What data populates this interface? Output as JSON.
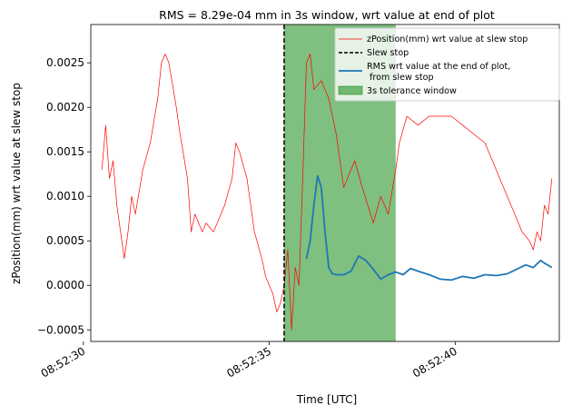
{
  "chart_data": {
    "type": "line",
    "title": "RMS = 8.29e-04 mm in 3s window, wrt value at end of plot",
    "xlabel": "Time [UTC]",
    "ylabel": "zPosition(mm) wrt value at slew stop",
    "xlim": [
      "08:52:30.2",
      "08:52:42.8"
    ],
    "ylim": [
      -0.00063,
      0.00293
    ],
    "x_ticks": [
      "08:52:30",
      "08:52:35",
      "08:52:40"
    ],
    "y_ticks": [
      "−0.0005",
      "0.0000",
      "0.0005",
      "0.0010",
      "0.0015",
      "0.0020",
      "0.0025"
    ],
    "y_tick_values": [
      -0.0005,
      0.0,
      0.0005,
      0.001,
      0.0015,
      0.002,
      0.0025
    ],
    "grid": false,
    "legend_placement": "top-right",
    "legend": [
      "zPosition(mm) wrt value at slew stop",
      "Slew stop",
      "RMS wrt value at the end of plot,",
      " from slew stop",
      "3s tolerance window"
    ],
    "slew_stop": "08:52:35.4",
    "tolerance_window": [
      "08:52:35.4",
      "08:52:38.4"
    ],
    "colors": {
      "zposition": "#ff0000",
      "slew_stop": "#000000",
      "rms": "#1f77b4",
      "window": "#008000"
    },
    "series": [
      {
        "name": "zPosition(mm) wrt value at slew stop",
        "x": [
          "08:52:30.5",
          "08:52:30.6",
          "08:52:30.7",
          "08:52:30.8",
          "08:52:30.9",
          "08:52:31.0",
          "08:52:31.1",
          "08:52:31.2",
          "08:52:31.3",
          "08:52:31.4",
          "08:52:31.6",
          "08:52:31.8",
          "08:52:32.0",
          "08:52:32.1",
          "08:52:32.2",
          "08:52:32.3",
          "08:52:32.5",
          "08:52:32.6",
          "08:52:32.8",
          "08:52:32.9",
          "08:52:33.0",
          "08:52:33.2",
          "08:52:33.3",
          "08:52:33.5",
          "08:52:33.6",
          "08:52:33.8",
          "08:52:34.0",
          "08:52:34.1",
          "08:52:34.2",
          "08:52:34.4",
          "08:52:34.6",
          "08:52:34.8",
          "08:52:34.9",
          "08:52:35.0",
          "08:52:35.1",
          "08:52:35.2",
          "08:52:35.3",
          "08:52:35.4",
          "08:52:35.5",
          "08:52:35.6",
          "08:52:35.7",
          "08:52:35.8",
          "08:52:35.9",
          "08:52:36.0",
          "08:52:36.1",
          "08:52:36.2",
          "08:52:36.4",
          "08:52:36.6",
          "08:52:36.8",
          "08:52:37.0",
          "08:52:37.1",
          "08:52:37.3",
          "08:52:37.5",
          "08:52:37.8",
          "08:52:38.0",
          "08:52:38.2",
          "08:52:38.4",
          "08:52:38.5",
          "08:52:38.7",
          "08:52:39.0",
          "08:52:39.3",
          "08:52:39.6",
          "08:52:39.9",
          "08:52:40.2",
          "08:52:40.5",
          "08:52:40.8",
          "08:52:41.1",
          "08:52:41.4",
          "08:52:41.6",
          "08:52:41.8",
          "08:52:42.0",
          "08:52:42.1",
          "08:52:42.2",
          "08:52:42.3",
          "08:52:42.4",
          "08:52:42.5",
          "08:52:42.6"
        ],
        "values": [
          0.0013,
          0.0018,
          0.0012,
          0.0014,
          0.0009,
          0.0006,
          0.0003,
          0.0006,
          0.001,
          0.0008,
          0.0013,
          0.0016,
          0.0021,
          0.0025,
          0.0026,
          0.0025,
          0.002,
          0.0017,
          0.0012,
          0.0006,
          0.0008,
          0.0006,
          0.0007,
          0.0006,
          0.0007,
          0.0009,
          0.0012,
          0.0016,
          0.0015,
          0.0012,
          0.0006,
          0.0003,
          0.0001,
          0.0,
          -0.0001,
          -0.0003,
          -0.0002,
          0.0,
          0.0004,
          -0.0005,
          0.0002,
          0.0,
          0.0012,
          0.0025,
          0.0026,
          0.0022,
          0.0023,
          0.0021,
          0.0017,
          0.0011,
          0.0012,
          0.0014,
          0.0011,
          0.0007,
          0.001,
          0.0008,
          0.0013,
          0.0016,
          0.0019,
          0.0018,
          0.0019,
          0.0019,
          0.0019,
          0.0018,
          0.0017,
          0.0016,
          0.0013,
          0.001,
          0.0008,
          0.0006,
          0.0005,
          0.0004,
          0.0006,
          0.0005,
          0.0009,
          0.0008,
          0.0012
        ]
      },
      {
        "name": "RMS wrt value at the end of plot,\n from slew stop",
        "x": [
          "08:52:36.0",
          "08:52:36.1",
          "08:52:36.2",
          "08:52:36.3",
          "08:52:36.4",
          "08:52:36.5",
          "08:52:36.6",
          "08:52:36.7",
          "08:52:36.8",
          "08:52:37.0",
          "08:52:37.2",
          "08:52:37.4",
          "08:52:37.6",
          "08:52:37.8",
          "08:52:38.0",
          "08:52:38.2",
          "08:52:38.4",
          "08:52:38.6",
          "08:52:38.8",
          "08:52:39.0",
          "08:52:39.3",
          "08:52:39.6",
          "08:52:39.9",
          "08:52:40.2",
          "08:52:40.5",
          "08:52:40.8",
          "08:52:41.1",
          "08:52:41.4",
          "08:52:41.7",
          "08:52:41.9",
          "08:52:42.1",
          "08:52:42.3",
          "08:52:42.4",
          "08:52:42.6"
        ],
        "values": [
          0.0003,
          0.0005,
          0.0009,
          0.00123,
          0.0011,
          0.0006,
          0.0002,
          0.00013,
          0.00012,
          0.00012,
          0.00016,
          0.00033,
          0.00028,
          0.00018,
          7e-05,
          0.00012,
          0.00015,
          0.00012,
          0.00019,
          0.00016,
          0.00012,
          7e-05,
          6e-05,
          0.0001,
          8e-05,
          0.00012,
          0.00011,
          0.00013,
          0.00019,
          0.00023,
          0.0002,
          0.00028,
          0.00025,
          0.0002
        ]
      }
    ]
  }
}
